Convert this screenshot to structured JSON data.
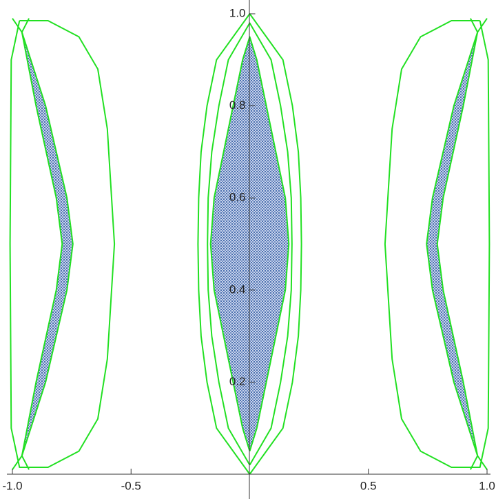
{
  "chart_data": {
    "type": "region",
    "xlim": [
      -1,
      1
    ],
    "ylim": [
      0,
      1
    ],
    "xticks": [
      {
        "value": -1,
        "label": "-1.0"
      },
      -0.5,
      0.5,
      {
        "value": 1,
        "label": "1.0"
      }
    ],
    "yticks": [
      0.2,
      0.4,
      0.6,
      0.8,
      {
        "value": 1,
        "label": "1.0"
      }
    ],
    "series": [
      {
        "style": "region",
        "color": "#4a6fb0",
        "x": [
          0,
          0.03,
          0.07,
          0.11,
          0.15,
          0.165,
          0.15,
          0.11,
          0.07,
          0.03,
          0,
          -0.03,
          -0.07,
          -0.11,
          -0.15,
          -0.165,
          -0.15,
          -0.11,
          -0.07,
          -0.03,
          0
        ],
        "y": [
          0.05,
          0.1,
          0.2,
          0.3,
          0.4,
          0.5,
          0.6,
          0.7,
          0.8,
          0.9,
          0.95,
          0.9,
          0.8,
          0.7,
          0.6,
          0.5,
          0.4,
          0.3,
          0.2,
          0.1,
          0.05
        ]
      },
      {
        "style": "region",
        "color": "#4a6fb0",
        "x": [
          -0.96,
          -0.86,
          -0.77,
          -0.745,
          -0.77,
          -0.86,
          -0.96,
          -0.9,
          -0.815,
          -0.79,
          -0.815,
          -0.9,
          -0.96
        ],
        "y": [
          0.96,
          0.8,
          0.6,
          0.5,
          0.4,
          0.2,
          0.04,
          0.2,
          0.4,
          0.5,
          0.6,
          0.8,
          0.96
        ]
      },
      {
        "style": "region",
        "color": "#4a6fb0",
        "x": [
          0.96,
          0.86,
          0.77,
          0.745,
          0.77,
          0.86,
          0.96,
          0.9,
          0.815,
          0.79,
          0.815,
          0.9,
          0.96
        ],
        "y": [
          0.96,
          0.8,
          0.6,
          0.5,
          0.4,
          0.2,
          0.04,
          0.2,
          0.4,
          0.5,
          0.6,
          0.8,
          0.96
        ]
      },
      {
        "style": "line",
        "color": "#22e022",
        "x": [
          0,
          0.14,
          0.18,
          0.205,
          0.215,
          0.218,
          0.215,
          0.205,
          0.18,
          0.14,
          0,
          -0.14,
          -0.18,
          -0.205,
          -0.215,
          -0.218,
          -0.215,
          -0.205,
          -0.18,
          -0.14,
          0
        ],
        "y": [
          0,
          0.1,
          0.2,
          0.3,
          0.4,
          0.5,
          0.6,
          0.7,
          0.8,
          0.9,
          1,
          0.9,
          0.8,
          0.7,
          0.6,
          0.5,
          0.4,
          0.3,
          0.2,
          0.1,
          0
        ]
      },
      {
        "style": "line",
        "color": "#22e022",
        "x": [
          0,
          0.09,
          0.13,
          0.16,
          0.175,
          0.178,
          0.175,
          0.16,
          0.13,
          0.09,
          0,
          -0.09,
          -0.13,
          -0.16,
          -0.175,
          -0.178,
          -0.175,
          -0.16,
          -0.13,
          -0.09,
          0
        ],
        "y": [
          0.02,
          0.1,
          0.2,
          0.3,
          0.4,
          0.5,
          0.6,
          0.7,
          0.8,
          0.9,
          0.98,
          0.9,
          0.8,
          0.7,
          0.6,
          0.5,
          0.4,
          0.3,
          0.2,
          0.1,
          0.02
        ]
      },
      {
        "style": "line",
        "color": "#22e022",
        "x": [
          0,
          0.03,
          0.07,
          0.11,
          0.15,
          0.165,
          0.15,
          0.11,
          0.07,
          0.03,
          0,
          -0.03,
          -0.07,
          -0.11,
          -0.15,
          -0.165,
          -0.15,
          -0.11,
          -0.07,
          -0.03,
          0
        ],
        "y": [
          0.05,
          0.1,
          0.2,
          0.3,
          0.4,
          0.5,
          0.6,
          0.7,
          0.8,
          0.9,
          0.95,
          0.9,
          0.8,
          0.7,
          0.6,
          0.5,
          0.4,
          0.3,
          0.2,
          0.1,
          0.05
        ]
      },
      {
        "style": "line",
        "color": "#22e022",
        "x": [
          -0.97,
          -0.85,
          -0.72,
          -0.64,
          -0.6,
          -0.57,
          -0.6,
          -0.64,
          -0.72,
          -0.85,
          -0.97,
          -1.005,
          -1.01,
          -1.005,
          -0.97
        ],
        "y": [
          0.985,
          0.985,
          0.95,
          0.88,
          0.75,
          0.5,
          0.25,
          0.12,
          0.05,
          0.015,
          0.015,
          0.1,
          0.5,
          0.9,
          0.985
        ]
      },
      {
        "style": "line",
        "color": "#22e022",
        "x": [
          0.97,
          0.85,
          0.72,
          0.64,
          0.6,
          0.57,
          0.6,
          0.64,
          0.72,
          0.85,
          0.97,
          1.005,
          1.01,
          1.005,
          0.97
        ],
        "y": [
          0.985,
          0.985,
          0.95,
          0.88,
          0.75,
          0.5,
          0.25,
          0.12,
          0.05,
          0.015,
          0.015,
          0.1,
          0.5,
          0.9,
          0.985
        ]
      },
      {
        "style": "line",
        "color": "#22e022",
        "x": [
          -1,
          -0.96,
          -0.86,
          -0.77,
          -0.745,
          -0.77,
          -0.86,
          -0.96,
          -1
        ],
        "y": [
          0.99,
          0.96,
          0.8,
          0.6,
          0.5,
          0.4,
          0.2,
          0.04,
          0.01
        ]
      },
      {
        "style": "line",
        "color": "#22e022",
        "x": [
          -0.93,
          -0.96,
          -0.9,
          -0.815,
          -0.79,
          -0.815,
          -0.9,
          -0.96,
          -0.93
        ],
        "y": [
          0.99,
          0.96,
          0.8,
          0.6,
          0.5,
          0.4,
          0.2,
          0.04,
          0.01
        ]
      },
      {
        "style": "line",
        "color": "#22e022",
        "x": [
          1,
          0.96,
          0.86,
          0.77,
          0.745,
          0.77,
          0.86,
          0.96,
          1
        ],
        "y": [
          0.99,
          0.96,
          0.8,
          0.6,
          0.5,
          0.4,
          0.2,
          0.04,
          0.01
        ]
      },
      {
        "style": "line",
        "color": "#22e022",
        "x": [
          0.93,
          0.96,
          0.9,
          0.815,
          0.79,
          0.815,
          0.9,
          0.96,
          0.93
        ],
        "y": [
          0.99,
          0.96,
          0.8,
          0.6,
          0.5,
          0.4,
          0.2,
          0.04,
          0.01
        ]
      }
    ]
  }
}
